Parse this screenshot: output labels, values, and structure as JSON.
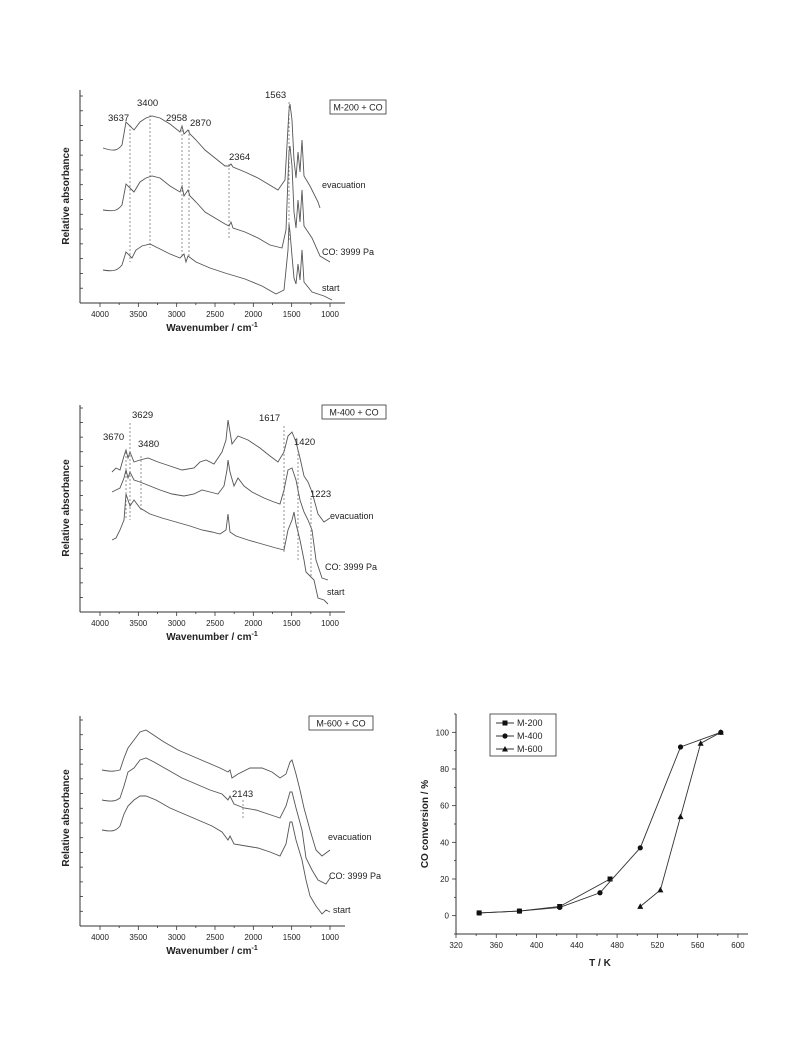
{
  "chart_data": [
    {
      "type": "line",
      "id": "ir-m200",
      "title": "",
      "box_label": "M-200 + CO",
      "xlabel": "Wavenumber / cm",
      "xlabel_sup": "-1",
      "ylabel": "Relative absorbance",
      "xlim": [
        4000,
        1000
      ],
      "x_ticks": [
        4000,
        3500,
        3000,
        2500,
        2000,
        1500,
        1000
      ],
      "series": [
        {
          "name": "evacuation"
        },
        {
          "name": "CO: 3999 Pa"
        },
        {
          "name": "start"
        }
      ],
      "peak_labels": [
        {
          "label": "3637",
          "x": 3637
        },
        {
          "label": "3400",
          "x": 3400
        },
        {
          "label": "2958",
          "x": 2958
        },
        {
          "label": "2870",
          "x": 2870
        },
        {
          "label": "2364",
          "x": 2364
        },
        {
          "label": "1563",
          "x": 1563
        }
      ]
    },
    {
      "type": "line",
      "id": "ir-m400",
      "title": "",
      "box_label": "M-400 + CO",
      "xlabel": "Wavenumber / cm",
      "xlabel_sup": "-1",
      "ylabel": "Relative absorbance",
      "xlim": [
        4000,
        1000
      ],
      "x_ticks": [
        4000,
        3500,
        3000,
        2500,
        2000,
        1500,
        1000
      ],
      "series": [
        {
          "name": "evacuation"
        },
        {
          "name": "CO: 3999 Pa"
        },
        {
          "name": "start"
        }
      ],
      "peak_labels": [
        {
          "label": "3670",
          "x": 3670
        },
        {
          "label": "3629",
          "x": 3629
        },
        {
          "label": "3480",
          "x": 3480
        },
        {
          "label": "1617",
          "x": 1617
        },
        {
          "label": "1420",
          "x": 1420
        },
        {
          "label": "1223",
          "x": 1223
        }
      ]
    },
    {
      "type": "line",
      "id": "ir-m600",
      "title": "",
      "box_label": "M-600 + CO",
      "xlabel": "Wavenumber / cm",
      "xlabel_sup": "-1",
      "ylabel": "Relative absorbance",
      "xlim": [
        4000,
        1000
      ],
      "x_ticks": [
        4000,
        3500,
        3000,
        2500,
        2000,
        1500,
        1000
      ],
      "series": [
        {
          "name": "evacuation"
        },
        {
          "name": "CO: 3999 Pa"
        },
        {
          "name": "start"
        }
      ],
      "peak_labels": [
        {
          "label": "2143",
          "x": 2143
        }
      ]
    },
    {
      "type": "line",
      "id": "co-conversion",
      "title": "",
      "xlabel": "T / K",
      "ylabel": "CO conversion / %",
      "xlim": [
        320,
        610
      ],
      "ylim": [
        -10,
        110
      ],
      "x_ticks": [
        320,
        360,
        400,
        440,
        480,
        520,
        560,
        600
      ],
      "y_ticks": [
        0,
        20,
        40,
        60,
        80,
        100
      ],
      "legend_position": "top-left",
      "series": [
        {
          "name": "M-200",
          "marker": "square",
          "x": [
            343,
            383,
            423,
            473
          ],
          "y": [
            1.5,
            2.5,
            5,
            20
          ]
        },
        {
          "name": "M-400",
          "marker": "circle",
          "x": [
            343,
            383,
            423,
            463,
            503,
            543,
            583
          ],
          "y": [
            1.5,
            2.5,
            4.5,
            12.5,
            37,
            92,
            100
          ]
        },
        {
          "name": "M-600",
          "marker": "triangle",
          "x": [
            503,
            523,
            543,
            563,
            583
          ],
          "y": [
            5,
            14,
            54,
            94,
            100
          ]
        }
      ]
    }
  ]
}
